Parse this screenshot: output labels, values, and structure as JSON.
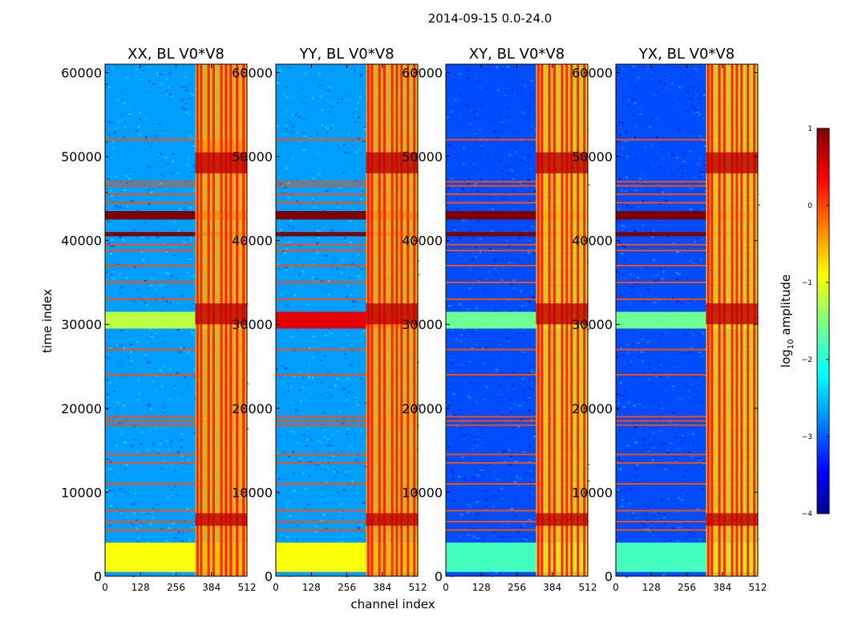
{
  "figure_title": "2014-09-15 0.0-24.0",
  "chart_data": [
    {
      "type": "heatmap",
      "title": "XX, BL V0*V8",
      "xlabel": "channel index",
      "ylabel": "time index",
      "xlim": [
        0,
        512
      ],
      "ylim": [
        0,
        61000
      ],
      "xticks": [
        0,
        128,
        256,
        384,
        512
      ],
      "yticks": [
        0,
        10000,
        20000,
        30000,
        40000,
        50000,
        60000
      ],
      "background_log10": -2.6,
      "bright_channel_range": [
        325,
        512
      ],
      "bright_log10": -0.5,
      "features": [
        {
          "time_range": [
            500,
            4000
          ],
          "log10": -0.9
        },
        {
          "time_range": [
            29500,
            31500
          ],
          "log10": -1.2
        },
        {
          "time_range": [
            42500,
            43500
          ],
          "log10": 1.0
        },
        {
          "time_range": [
            40500,
            41000
          ],
          "log10": 1.0
        },
        {
          "time_range": [
            48000,
            52000
          ],
          "log10": 0.2,
          "channel_range": [
            325,
            512
          ]
        }
      ]
    },
    {
      "type": "heatmap",
      "title": "YY, BL V0*V8",
      "xlim": [
        0,
        512
      ],
      "ylim": [
        0,
        61000
      ],
      "xticks": [
        0,
        128,
        256,
        384,
        512
      ],
      "yticks": [
        0,
        10000,
        20000,
        30000,
        40000,
        50000,
        60000
      ],
      "background_log10": -2.6,
      "bright_channel_range": [
        325,
        512
      ],
      "bright_log10": -0.5,
      "features": [
        {
          "time_range": [
            500,
            4000
          ],
          "log10": -0.9
        },
        {
          "time_range": [
            29500,
            31500
          ],
          "log10": 0.5
        },
        {
          "time_range": [
            42500,
            43500
          ],
          "log10": 1.0
        },
        {
          "time_range": [
            40500,
            41000
          ],
          "log10": 1.0
        }
      ]
    },
    {
      "type": "heatmap",
      "title": "XY, BL V0*V8",
      "xlim": [
        0,
        512
      ],
      "ylim": [
        0,
        61000
      ],
      "xticks": [
        0,
        128,
        256,
        384,
        512
      ],
      "yticks": [
        0,
        10000,
        20000,
        30000,
        40000,
        50000,
        60000
      ],
      "background_log10": -3.0,
      "bright_channel_range": [
        325,
        512
      ],
      "bright_log10": -0.7,
      "features": [
        {
          "time_range": [
            500,
            4000
          ],
          "log10": -1.8
        },
        {
          "time_range": [
            29500,
            31500
          ],
          "log10": -1.6
        },
        {
          "time_range": [
            42500,
            43500
          ],
          "log10": 1.0
        },
        {
          "time_range": [
            40500,
            41000
          ],
          "log10": 1.0
        }
      ]
    },
    {
      "type": "heatmap",
      "title": "YX, BL V0*V8",
      "xlim": [
        0,
        512
      ],
      "ylim": [
        0,
        61000
      ],
      "xticks": [
        0,
        128,
        256,
        384,
        512
      ],
      "yticks": [
        0,
        10000,
        20000,
        30000,
        40000,
        50000,
        60000
      ],
      "background_log10": -3.0,
      "bright_channel_range": [
        325,
        512
      ],
      "bright_log10": -0.7,
      "features": [
        {
          "time_range": [
            500,
            4000
          ],
          "log10": -1.8
        },
        {
          "time_range": [
            29500,
            31500
          ],
          "log10": -1.6
        },
        {
          "time_range": [
            42500,
            43500
          ],
          "log10": 1.0
        },
        {
          "time_range": [
            40500,
            41000
          ],
          "log10": 1.0
        }
      ]
    }
  ],
  "rfi_rows_time_index": [
    5500,
    6500,
    7800,
    11000,
    13500,
    14500,
    18000,
    18500,
    19000,
    24000,
    27000,
    33000,
    35000,
    37000,
    38800,
    39500,
    44500,
    45500,
    46500,
    47000,
    52000
  ],
  "bright_channel_lines": [
    332,
    345,
    372,
    390,
    418,
    435,
    452,
    475,
    498
  ],
  "colorbar": {
    "label_main": "log",
    "label_sub": "10",
    "label_rest": " amplitude",
    "range": [
      -4,
      1
    ],
    "ticks": [
      "1",
      "0",
      "−1",
      "−2",
      "−3",
      "−4"
    ],
    "colormap": "jet"
  }
}
